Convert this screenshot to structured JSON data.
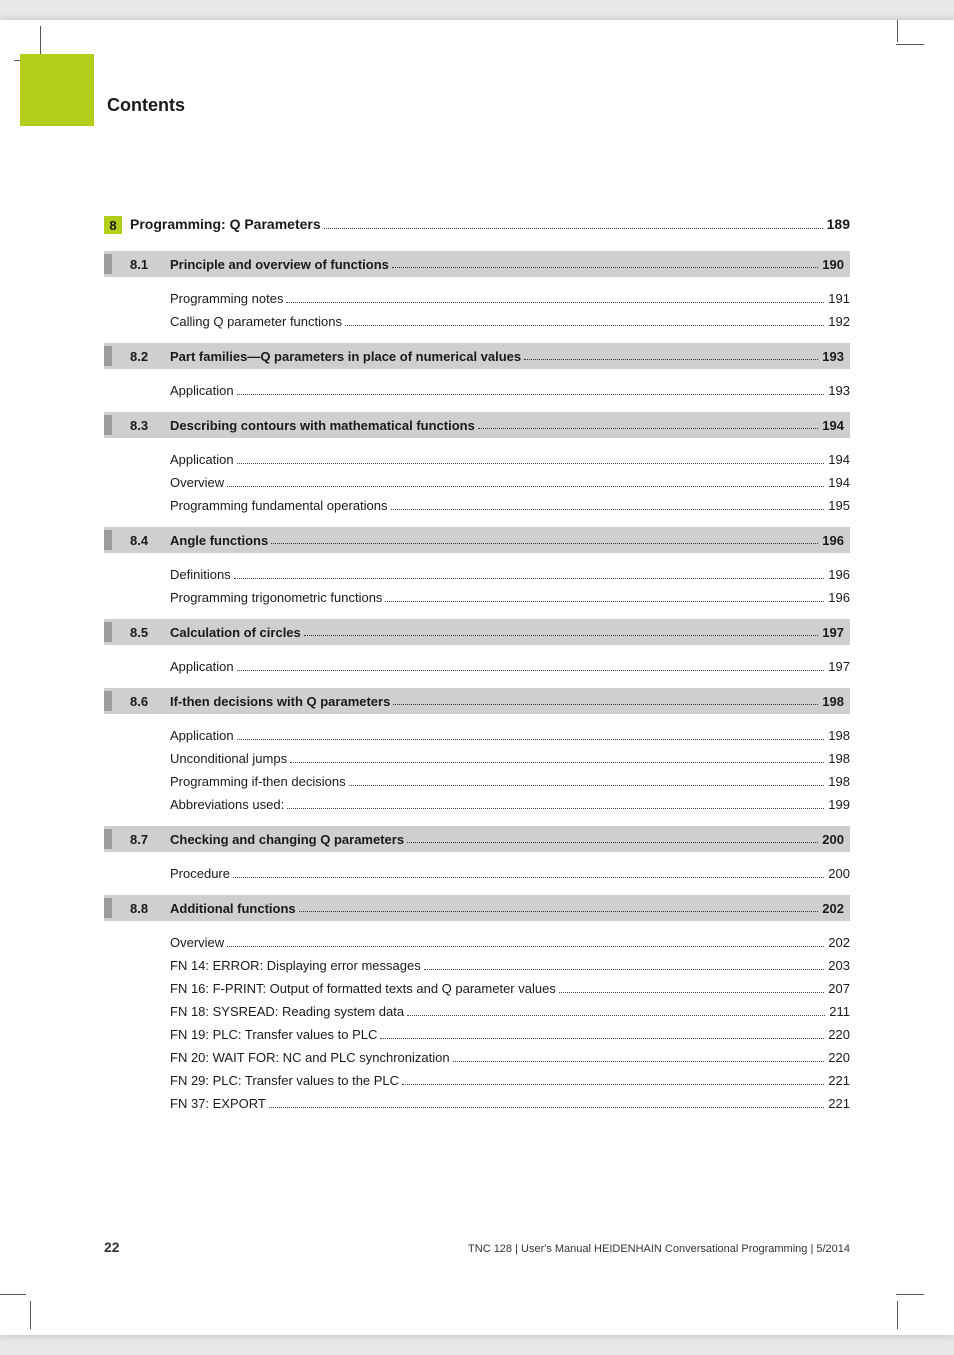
{
  "header": {
    "title": "Contents"
  },
  "chapter": {
    "num": "8",
    "title": "Programming: Q Parameters",
    "page": "189"
  },
  "sections": [
    {
      "num": "8.1",
      "title": "Principle and overview of functions",
      "page": "190",
      "items": [
        {
          "label": "Programming notes",
          "page": "191"
        },
        {
          "label": "Calling Q parameter functions",
          "page": "192"
        }
      ]
    },
    {
      "num": "8.2",
      "title": "Part families—Q parameters in place of numerical values",
      "page": "193",
      "items": [
        {
          "label": "Application",
          "page": "193"
        }
      ]
    },
    {
      "num": "8.3",
      "title": "Describing contours with mathematical functions",
      "page": "194",
      "items": [
        {
          "label": "Application",
          "page": "194"
        },
        {
          "label": "Overview",
          "page": "194"
        },
        {
          "label": "Programming fundamental operations",
          "page": "195"
        }
      ]
    },
    {
      "num": "8.4",
      "title": "Angle functions",
      "page": "196",
      "items": [
        {
          "label": "Definitions",
          "page": "196"
        },
        {
          "label": "Programming trigonometric functions",
          "page": "196"
        }
      ]
    },
    {
      "num": "8.5",
      "title": "Calculation of circles",
      "page": "197",
      "items": [
        {
          "label": "Application",
          "page": "197"
        }
      ]
    },
    {
      "num": "8.6",
      "title": "If-then decisions with Q parameters",
      "page": "198",
      "items": [
        {
          "label": "Application",
          "page": "198"
        },
        {
          "label": "Unconditional jumps",
          "page": "198"
        },
        {
          "label": "Programming if-then decisions",
          "page": "198"
        },
        {
          "label": "Abbreviations used:",
          "page": "199"
        }
      ]
    },
    {
      "num": "8.7",
      "title": "Checking and changing Q parameters",
      "page": "200",
      "items": [
        {
          "label": "Procedure",
          "page": "200"
        }
      ]
    },
    {
      "num": "8.8",
      "title": "Additional functions",
      "page": "202",
      "items": [
        {
          "label": "Overview",
          "page": "202"
        },
        {
          "label": "FN 14: ERROR: Displaying error messages",
          "page": "203"
        },
        {
          "label": "FN 16: F-PRINT: Output of formatted texts and Q parameter values",
          "page": "207"
        },
        {
          "label": "FN 18: SYSREAD: Reading system data",
          "page": "211"
        },
        {
          "label": "FN 19: PLC: Transfer values to PLC",
          "page": "220"
        },
        {
          "label": "FN 20: WAIT FOR: NC and PLC synchronization",
          "page": "220"
        },
        {
          "label": "FN 29: PLC: Transfer values to the PLC",
          "page": "221"
        },
        {
          "label": "FN 37: EXPORT",
          "page": "221"
        }
      ]
    }
  ],
  "footer": {
    "pageNum": "22",
    "text": "TNC 128 | User's Manual HEIDENHAIN Conversational Programming | 5/2014"
  },
  "colors": {
    "accent": "#b5cc18",
    "sectionBg": "#cfcfcf",
    "sectionStub": "#9d9d9d"
  }
}
